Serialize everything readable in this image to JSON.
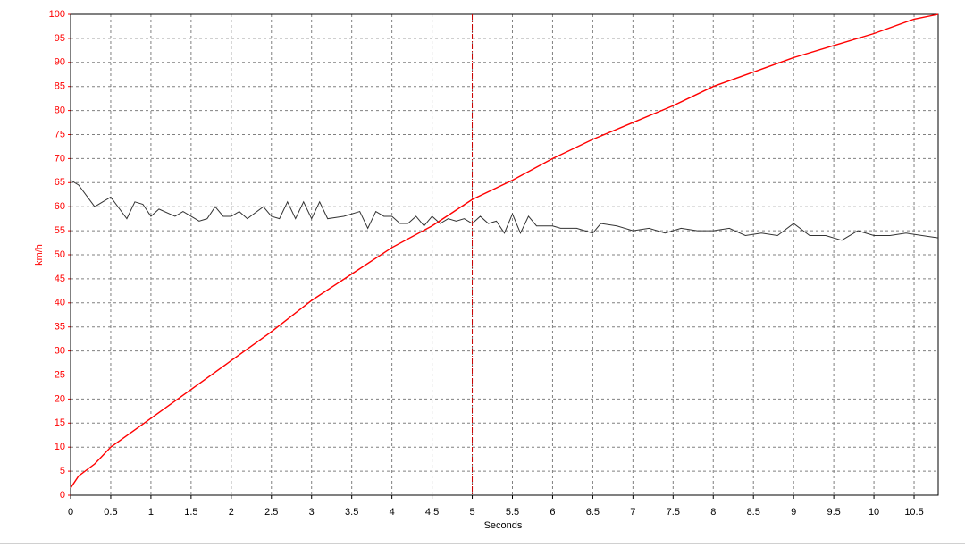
{
  "chart_data": {
    "type": "line",
    "ylabel": "km/h",
    "xlabel": "Seconds",
    "xlim": [
      0,
      10.8
    ],
    "ylim": [
      0,
      100
    ],
    "xticks": [
      0,
      0.5,
      1,
      1.5,
      2,
      2.5,
      3,
      3.5,
      4,
      4.5,
      5,
      5.5,
      6,
      6.5,
      7,
      7.5,
      8,
      8.5,
      9,
      9.5,
      10,
      10.5
    ],
    "yticks": [
      0,
      5,
      10,
      15,
      20,
      25,
      30,
      35,
      40,
      45,
      50,
      55,
      60,
      65,
      70,
      75,
      80,
      85,
      90,
      95,
      100
    ],
    "grid": true,
    "cursor_x": 5,
    "cursor_color": "#cc0000",
    "series": [
      {
        "color": "#ff0000",
        "x": [
          0,
          0.1,
          0.3,
          0.5,
          0.75,
          1,
          1.5,
          2,
          2.5,
          3,
          3.5,
          4,
          4.5,
          5,
          5.5,
          6,
          6.5,
          7,
          7.5,
          8,
          8.5,
          9,
          9.5,
          10,
          10.5,
          10.8
        ],
        "values": [
          1.5,
          4,
          6.5,
          10,
          13,
          16,
          22,
          28,
          34,
          40.5,
          46,
          51.5,
          56,
          61.5,
          65.5,
          70,
          74,
          77.5,
          81,
          85,
          88,
          91,
          93.5,
          96,
          99,
          100
        ]
      },
      {
        "color": "#333333",
        "x": [
          0,
          0.1,
          0.3,
          0.5,
          0.7,
          0.8,
          0.9,
          1,
          1.1,
          1.3,
          1.4,
          1.6,
          1.7,
          1.8,
          1.9,
          2,
          2.1,
          2.2,
          2.4,
          2.5,
          2.6,
          2.7,
          2.8,
          2.9,
          3,
          3.1,
          3.2,
          3.4,
          3.6,
          3.7,
          3.8,
          3.9,
          4,
          4.1,
          4.2,
          4.3,
          4.4,
          4.5,
          4.6,
          4.7,
          4.8,
          4.9,
          5,
          5.1,
          5.2,
          5.3,
          5.4,
          5.5,
          5.6,
          5.7,
          5.8,
          6,
          6.1,
          6.3,
          6.5,
          6.6,
          6.8,
          7,
          7.2,
          7.4,
          7.6,
          7.8,
          8,
          8.2,
          8.4,
          8.6,
          8.8,
          9,
          9.2,
          9.4,
          9.6,
          9.8,
          10,
          10.2,
          10.4,
          10.6,
          10.8
        ],
        "values": [
          65.5,
          64.5,
          60,
          62,
          57.5,
          61,
          60.5,
          58,
          59.5,
          58,
          59,
          57,
          57.5,
          60,
          58,
          58,
          59,
          57.5,
          60,
          58,
          57.5,
          61,
          57.5,
          61,
          57.5,
          61,
          57.5,
          58,
          59,
          55.5,
          59,
          58,
          58,
          56.5,
          56.5,
          58,
          56,
          58,
          56.5,
          57.5,
          57,
          57.5,
          56.5,
          58,
          56.5,
          57,
          54.5,
          58.5,
          54.5,
          58,
          56,
          56,
          55.5,
          55.5,
          54.5,
          56.5,
          56,
          55,
          55.5,
          54.5,
          55.5,
          55,
          55,
          55.5,
          54,
          54.5,
          54,
          56.5,
          54,
          54,
          53,
          55,
          54,
          54,
          54.5,
          54,
          53.5
        ]
      }
    ]
  }
}
